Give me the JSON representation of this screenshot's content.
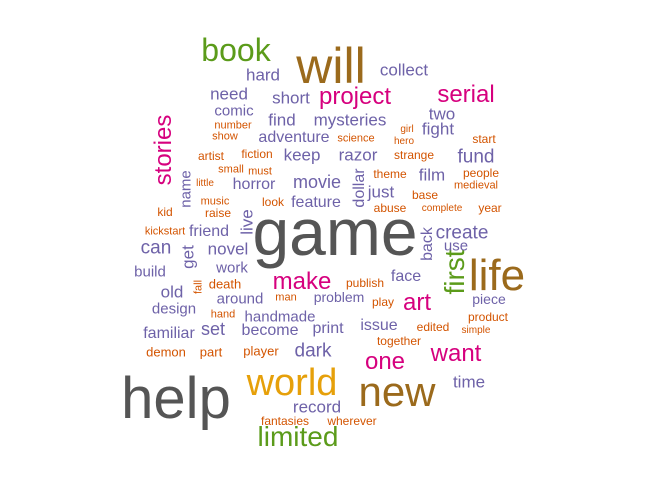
{
  "colors": {
    "gray": "#555555",
    "brown": "#9b6a1c",
    "magenta": "#d6007e",
    "green": "#5b9b1a",
    "orange": "#e6a00a",
    "purple": "#6e62a8",
    "dark_orange": "#d35400"
  },
  "words": [
    {
      "text": "game",
      "color": "gray"
    },
    {
      "text": "help",
      "color": "gray"
    },
    {
      "text": "will",
      "color": "brown"
    },
    {
      "text": "life",
      "color": "brown"
    },
    {
      "text": "new",
      "color": "brown"
    },
    {
      "text": "world",
      "color": "orange"
    },
    {
      "text": "book",
      "color": "green"
    },
    {
      "text": "limited",
      "color": "green"
    },
    {
      "text": "first",
      "color": "green"
    },
    {
      "text": "project",
      "color": "magenta"
    },
    {
      "text": "serial",
      "color": "magenta"
    },
    {
      "text": "stories",
      "color": "magenta"
    },
    {
      "text": "make",
      "color": "magenta"
    },
    {
      "text": "art",
      "color": "magenta"
    },
    {
      "text": "one",
      "color": "magenta"
    },
    {
      "text": "want",
      "color": "magenta"
    },
    {
      "text": "collect",
      "color": "purple"
    },
    {
      "text": "hard",
      "color": "purple"
    },
    {
      "text": "need",
      "color": "purple"
    },
    {
      "text": "short",
      "color": "purple"
    },
    {
      "text": "two",
      "color": "purple"
    },
    {
      "text": "comic",
      "color": "purple"
    },
    {
      "text": "find",
      "color": "purple"
    },
    {
      "text": "mysteries",
      "color": "purple"
    },
    {
      "text": "fight",
      "color": "purple"
    },
    {
      "text": "adventure",
      "color": "purple"
    },
    {
      "text": "keep",
      "color": "purple"
    },
    {
      "text": "razor",
      "color": "purple"
    },
    {
      "text": "fund",
      "color": "purple"
    },
    {
      "text": "film",
      "color": "purple"
    },
    {
      "text": "movie",
      "color": "purple"
    },
    {
      "text": "horror",
      "color": "purple"
    },
    {
      "text": "just",
      "color": "purple"
    },
    {
      "text": "dollar",
      "color": "purple"
    },
    {
      "text": "name",
      "color": "purple"
    },
    {
      "text": "feature",
      "color": "purple"
    },
    {
      "text": "live",
      "color": "purple"
    },
    {
      "text": "friend",
      "color": "purple"
    },
    {
      "text": "create",
      "color": "purple"
    },
    {
      "text": "can",
      "color": "purple"
    },
    {
      "text": "novel",
      "color": "purple"
    },
    {
      "text": "get",
      "color": "purple"
    },
    {
      "text": "back",
      "color": "purple"
    },
    {
      "text": "use",
      "color": "purple"
    },
    {
      "text": "build",
      "color": "purple"
    },
    {
      "text": "work",
      "color": "purple"
    },
    {
      "text": "old",
      "color": "purple"
    },
    {
      "text": "face",
      "color": "purple"
    },
    {
      "text": "design",
      "color": "purple"
    },
    {
      "text": "around",
      "color": "purple"
    },
    {
      "text": "problem",
      "color": "purple"
    },
    {
      "text": "piece",
      "color": "purple"
    },
    {
      "text": "handmade",
      "color": "purple"
    },
    {
      "text": "familiar",
      "color": "purple"
    },
    {
      "text": "set",
      "color": "purple"
    },
    {
      "text": "become",
      "color": "purple"
    },
    {
      "text": "print",
      "color": "purple"
    },
    {
      "text": "issue",
      "color": "purple"
    },
    {
      "text": "dark",
      "color": "purple"
    },
    {
      "text": "time",
      "color": "purple"
    },
    {
      "text": "record",
      "color": "purple"
    },
    {
      "text": "number",
      "color": "dark_orange"
    },
    {
      "text": "show",
      "color": "dark_orange"
    },
    {
      "text": "science",
      "color": "dark_orange"
    },
    {
      "text": "girl",
      "color": "dark_orange"
    },
    {
      "text": "hero",
      "color": "dark_orange"
    },
    {
      "text": "start",
      "color": "dark_orange"
    },
    {
      "text": "artist",
      "color": "dark_orange"
    },
    {
      "text": "fiction",
      "color": "dark_orange"
    },
    {
      "text": "small",
      "color": "dark_orange"
    },
    {
      "text": "must",
      "color": "dark_orange"
    },
    {
      "text": "strange",
      "color": "dark_orange"
    },
    {
      "text": "little",
      "color": "dark_orange"
    },
    {
      "text": "theme",
      "color": "dark_orange"
    },
    {
      "text": "people",
      "color": "dark_orange"
    },
    {
      "text": "medieval",
      "color": "dark_orange"
    },
    {
      "text": "music",
      "color": "dark_orange"
    },
    {
      "text": "look",
      "color": "dark_orange"
    },
    {
      "text": "base",
      "color": "dark_orange"
    },
    {
      "text": "kid",
      "color": "dark_orange"
    },
    {
      "text": "raise",
      "color": "dark_orange"
    },
    {
      "text": "abuse",
      "color": "dark_orange"
    },
    {
      "text": "complete",
      "color": "dark_orange"
    },
    {
      "text": "year",
      "color": "dark_orange"
    },
    {
      "text": "kickstart",
      "color": "dark_orange"
    },
    {
      "text": "fall",
      "color": "dark_orange"
    },
    {
      "text": "death",
      "color": "dark_orange"
    },
    {
      "text": "publish",
      "color": "dark_orange"
    },
    {
      "text": "play",
      "color": "dark_orange"
    },
    {
      "text": "man",
      "color": "dark_orange"
    },
    {
      "text": "hand",
      "color": "dark_orange"
    },
    {
      "text": "product",
      "color": "dark_orange"
    },
    {
      "text": "edited",
      "color": "dark_orange"
    },
    {
      "text": "simple",
      "color": "dark_orange"
    },
    {
      "text": "together",
      "color": "dark_orange"
    },
    {
      "text": "demon",
      "color": "dark_orange"
    },
    {
      "text": "part",
      "color": "dark_orange"
    },
    {
      "text": "player",
      "color": "dark_orange"
    },
    {
      "text": "fantasies",
      "color": "dark_orange"
    },
    {
      "text": "wherever",
      "color": "dark_orange"
    }
  ]
}
